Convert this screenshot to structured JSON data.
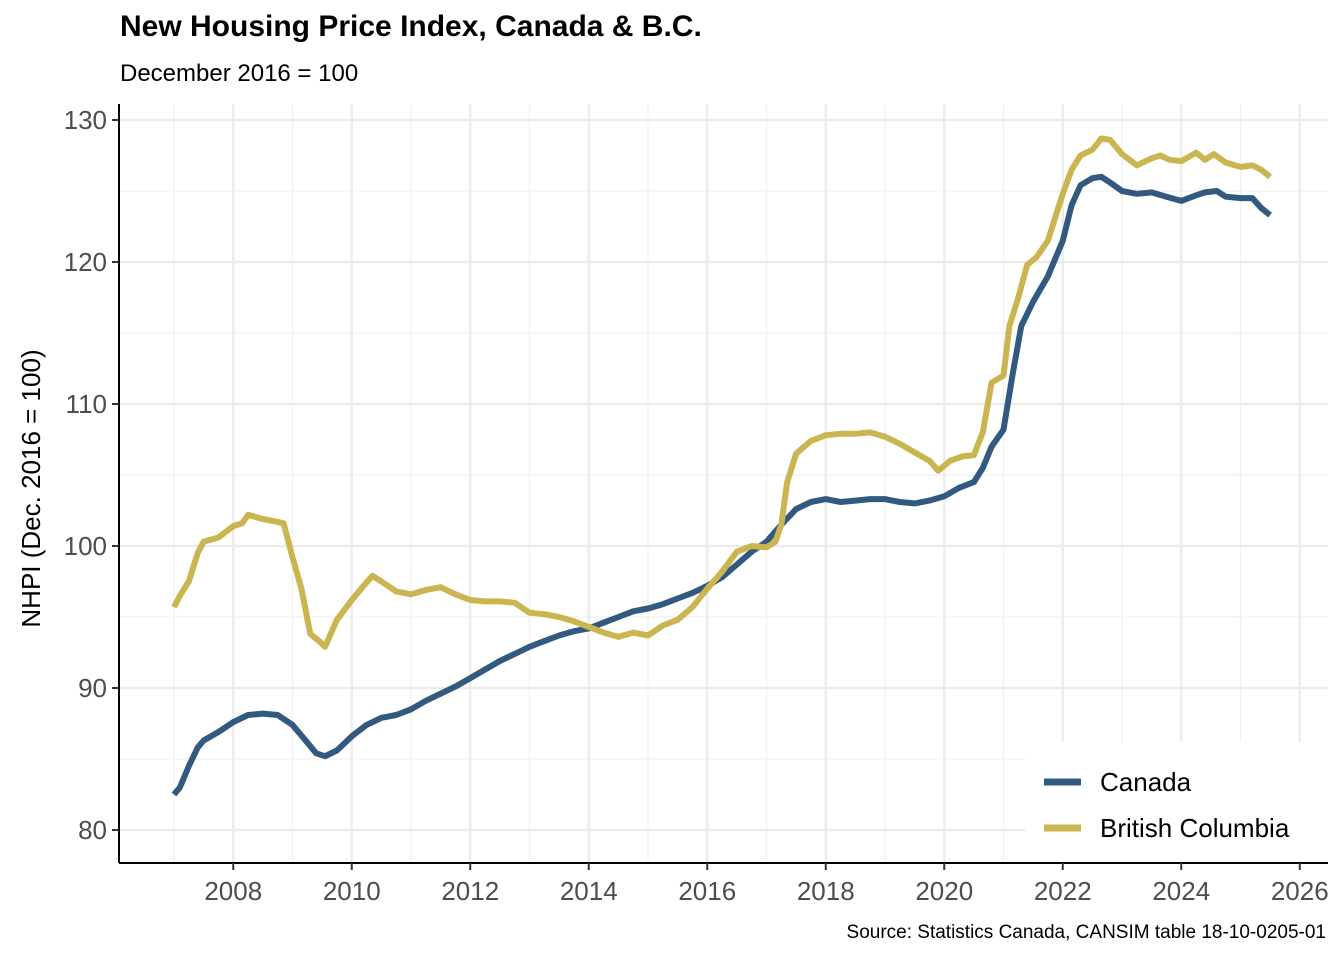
{
  "chart_data": {
    "type": "line",
    "title": "New Housing Price Index, Canada & B.C.",
    "subtitle": "December 2016 = 100",
    "xlabel": "",
    "ylabel": "NHPI (Dec. 2016 = 100)",
    "caption": "Source: Statistics Canada, CANSIM table 18-10-0205-01",
    "xlim": [
      2006.6,
      2026.4
    ],
    "ylim": [
      77.7,
      130.1
    ],
    "x_ticks": [
      2008,
      2010,
      2012,
      2014,
      2016,
      2018,
      2020,
      2022,
      2024,
      2026
    ],
    "x_tick_labels": [
      "2008",
      "2010",
      "2012",
      "2014",
      "2016",
      "2018",
      "2020",
      "2022",
      "2024",
      "2026"
    ],
    "y_ticks": [
      80,
      90,
      100,
      110,
      120,
      130
    ],
    "y_tick_labels": [
      "80",
      "90",
      "100",
      "110",
      "120",
      "130"
    ],
    "grid": true,
    "legend_position": "bottom-right",
    "series": [
      {
        "name": "Canada",
        "color": "#325a80",
        "x": [
          2007.0,
          2007.1,
          2007.25,
          2007.4,
          2007.5,
          2007.75,
          2008.0,
          2008.25,
          2008.5,
          2008.75,
          2009.0,
          2009.2,
          2009.4,
          2009.55,
          2009.75,
          2010.0,
          2010.25,
          2010.5,
          2010.75,
          2011.0,
          2011.25,
          2011.5,
          2011.75,
          2012.0,
          2012.25,
          2012.5,
          2012.75,
          2013.0,
          2013.25,
          2013.5,
          2013.75,
          2014.0,
          2014.25,
          2014.5,
          2014.75,
          2015.0,
          2015.25,
          2015.5,
          2015.75,
          2016.0,
          2016.25,
          2016.5,
          2016.75,
          2017.0,
          2017.25,
          2017.5,
          2017.75,
          2018.0,
          2018.25,
          2018.5,
          2018.75,
          2019.0,
          2019.25,
          2019.5,
          2019.75,
          2020.0,
          2020.25,
          2020.5,
          2020.65,
          2020.8,
          2021.0,
          2021.15,
          2021.3,
          2021.5,
          2021.75,
          2022.0,
          2022.15,
          2022.3,
          2022.5,
          2022.65,
          2022.8,
          2023.0,
          2023.25,
          2023.5,
          2023.75,
          2024.0,
          2024.25,
          2024.4,
          2024.6,
          2024.75,
          2025.0,
          2025.2,
          2025.35,
          2025.5
        ],
        "values": [
          82.5,
          83.0,
          84.5,
          85.8,
          86.3,
          86.9,
          87.6,
          88.1,
          88.2,
          88.1,
          87.4,
          86.4,
          85.4,
          85.2,
          85.6,
          86.6,
          87.4,
          87.9,
          88.1,
          88.5,
          89.1,
          89.6,
          90.1,
          90.7,
          91.3,
          91.9,
          92.4,
          92.9,
          93.3,
          93.7,
          94.0,
          94.2,
          94.6,
          95.0,
          95.4,
          95.6,
          95.9,
          96.3,
          96.7,
          97.2,
          97.8,
          98.7,
          99.6,
          100.3,
          101.5,
          102.6,
          103.1,
          103.3,
          103.1,
          103.2,
          103.3,
          103.3,
          103.1,
          103.0,
          103.2,
          103.5,
          104.1,
          104.5,
          105.5,
          107.0,
          108.2,
          112.0,
          115.5,
          117.2,
          119.0,
          121.5,
          124.0,
          125.4,
          125.9,
          126.0,
          125.6,
          125.0,
          124.8,
          124.9,
          124.6,
          124.3,
          124.7,
          124.9,
          125.0,
          124.6,
          124.5,
          124.5,
          123.8,
          123.3
        ]
      },
      {
        "name": "British Columbia",
        "color": "#cab551",
        "x": [
          2007.0,
          2007.1,
          2007.25,
          2007.4,
          2007.5,
          2007.75,
          2008.0,
          2008.15,
          2008.25,
          2008.5,
          2008.75,
          2008.85,
          2009.0,
          2009.15,
          2009.3,
          2009.45,
          2009.55,
          2009.75,
          2010.0,
          2010.2,
          2010.35,
          2010.5,
          2010.75,
          2011.0,
          2011.25,
          2011.5,
          2011.75,
          2012.0,
          2012.25,
          2012.5,
          2012.75,
          2013.0,
          2013.25,
          2013.5,
          2013.75,
          2014.0,
          2014.25,
          2014.5,
          2014.75,
          2015.0,
          2015.25,
          2015.5,
          2015.75,
          2016.0,
          2016.25,
          2016.5,
          2016.75,
          2017.0,
          2017.15,
          2017.25,
          2017.35,
          2017.5,
          2017.75,
          2018.0,
          2018.25,
          2018.5,
          2018.75,
          2019.0,
          2019.25,
          2019.5,
          2019.75,
          2019.9,
          2020.1,
          2020.3,
          2020.5,
          2020.65,
          2020.8,
          2021.0,
          2021.1,
          2021.25,
          2021.4,
          2021.55,
          2021.75,
          2021.9,
          2022.0,
          2022.15,
          2022.3,
          2022.5,
          2022.65,
          2022.8,
          2023.0,
          2023.25,
          2023.5,
          2023.65,
          2023.8,
          2024.0,
          2024.25,
          2024.4,
          2024.55,
          2024.75,
          2025.0,
          2025.2,
          2025.35,
          2025.5
        ],
        "values": [
          95.7,
          96.5,
          97.5,
          99.5,
          100.3,
          100.6,
          101.4,
          101.6,
          102.2,
          101.9,
          101.7,
          101.6,
          99.2,
          97.0,
          93.8,
          93.3,
          92.9,
          94.8,
          96.2,
          97.2,
          97.9,
          97.5,
          96.8,
          96.6,
          96.9,
          97.1,
          96.6,
          96.2,
          96.1,
          96.1,
          96.0,
          95.3,
          95.2,
          95.0,
          94.7,
          94.3,
          93.9,
          93.6,
          93.9,
          93.7,
          94.4,
          94.8,
          95.7,
          97.0,
          98.2,
          99.6,
          100.0,
          99.9,
          100.3,
          101.5,
          104.5,
          106.5,
          107.4,
          107.8,
          107.9,
          107.9,
          108.0,
          107.7,
          107.2,
          106.6,
          106.0,
          105.3,
          106.0,
          106.3,
          106.4,
          108.0,
          111.5,
          112.0,
          115.5,
          117.5,
          119.8,
          120.3,
          121.5,
          123.5,
          124.8,
          126.5,
          127.5,
          127.9,
          128.7,
          128.6,
          127.6,
          126.8,
          127.3,
          127.5,
          127.2,
          127.1,
          127.7,
          127.2,
          127.6,
          127.0,
          126.7,
          126.8,
          126.5,
          126.0
        ]
      }
    ]
  }
}
